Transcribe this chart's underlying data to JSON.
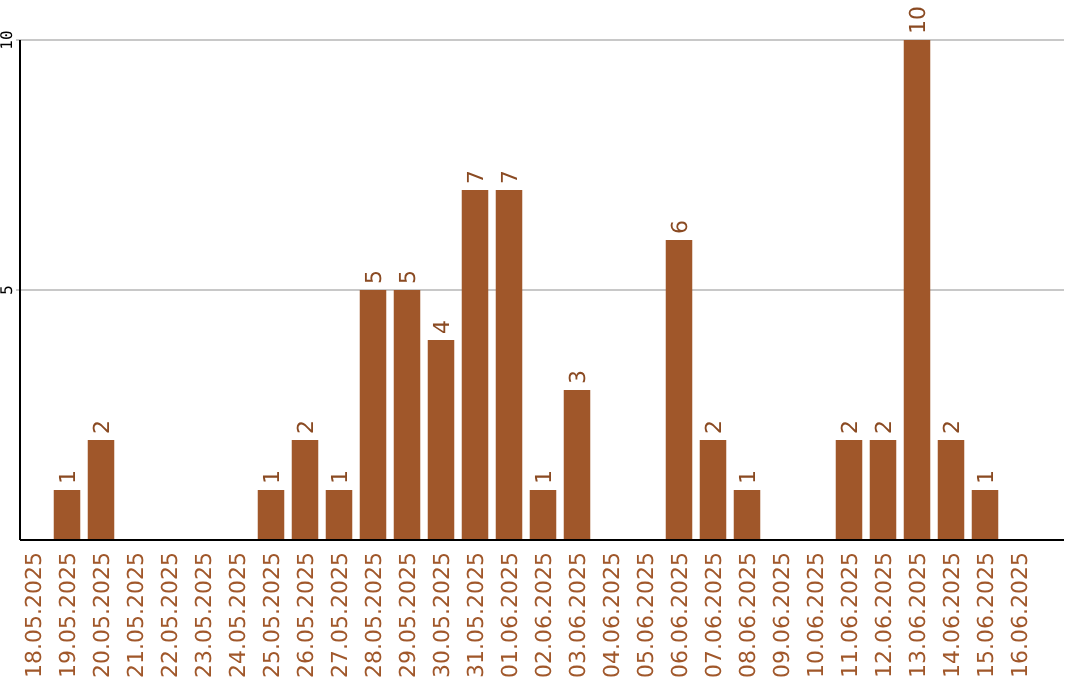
{
  "chart_data": {
    "type": "bar",
    "categories": [
      "18.05.2025",
      "19.05.2025",
      "20.05.2025",
      "21.05.2025",
      "22.05.2025",
      "23.05.2025",
      "24.05.2025",
      "25.05.2025",
      "26.05.2025",
      "27.05.2025",
      "28.05.2025",
      "29.05.2025",
      "30.05.2025",
      "31.05.2025",
      "01.06.2025",
      "02.06.2025",
      "03.06.2025",
      "04.06.2025",
      "05.06.2025",
      "06.06.2025",
      "07.06.2025",
      "08.06.2025",
      "09.06.2025",
      "10.06.2025",
      "11.06.2025",
      "12.06.2025",
      "13.06.2025",
      "14.06.2025",
      "15.06.2025",
      "16.06.2025"
    ],
    "values": [
      null,
      1,
      2,
      null,
      null,
      null,
      null,
      1,
      2,
      1,
      5,
      5,
      4,
      7,
      7,
      1,
      3,
      null,
      null,
      6,
      2,
      1,
      null,
      null,
      2,
      2,
      10,
      2,
      1,
      null
    ],
    "color": "#a0572a",
    "ylim": [
      0,
      10
    ],
    "yticks": [
      5,
      10
    ],
    "grid": "y",
    "data_labels": true
  }
}
